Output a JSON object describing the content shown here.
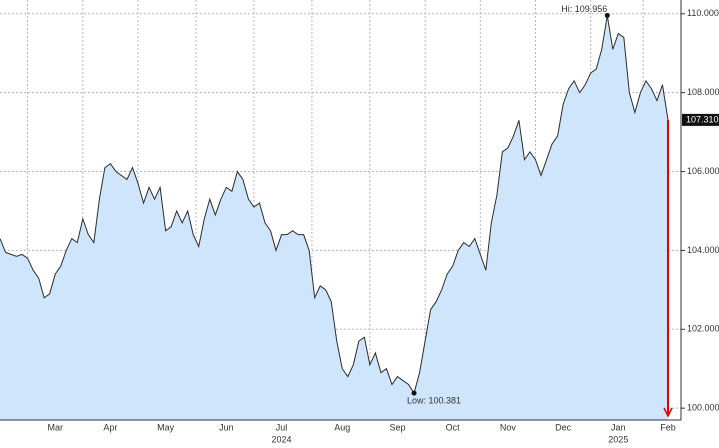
{
  "chart_data": {
    "type": "area",
    "color": "#cfe5fc",
    "line_color": "#2b2b2b",
    "categories": [
      null,
      null,
      null,
      null,
      null,
      null,
      null,
      null,
      null,
      null,
      "Mar",
      null,
      null,
      null,
      null,
      null,
      null,
      null,
      null,
      null,
      "Apr",
      null,
      null,
      null,
      null,
      null,
      null,
      null,
      null,
      null,
      "May",
      null,
      null,
      null,
      null,
      null,
      null,
      null,
      null,
      null,
      null,
      "Jun",
      null,
      null,
      null,
      null,
      null,
      null,
      null,
      null,
      null,
      "Jul",
      null,
      null,
      null,
      null,
      null,
      null,
      null,
      null,
      null,
      null,
      "Aug",
      null,
      null,
      null,
      null,
      null,
      null,
      null,
      null,
      null,
      "Sep",
      null,
      null,
      null,
      null,
      null,
      null,
      null,
      null,
      null,
      "Oct",
      null,
      null,
      null,
      null,
      null,
      null,
      null,
      null,
      null,
      "Nov",
      null,
      null,
      null,
      null,
      null,
      null,
      null,
      null,
      null,
      "Dec",
      null,
      null,
      null,
      null,
      null,
      null,
      null,
      null,
      null,
      "Jan",
      null,
      null,
      null,
      null,
      null,
      null,
      null,
      null,
      "Feb"
    ],
    "values": [
      104.3,
      103.95,
      103.9,
      103.85,
      103.9,
      103.8,
      103.5,
      103.3,
      102.8,
      102.9,
      103.4,
      103.6,
      104.0,
      104.3,
      104.2,
      104.8,
      104.4,
      104.2,
      105.3,
      106.1,
      106.2,
      106.0,
      105.9,
      105.8,
      106.1,
      105.7,
      105.2,
      105.6,
      105.3,
      105.6,
      104.5,
      104.6,
      105.0,
      104.7,
      105.0,
      104.4,
      104.1,
      104.8,
      105.3,
      104.9,
      105.3,
      105.6,
      105.5,
      106.0,
      105.8,
      105.3,
      105.1,
      105.2,
      104.7,
      104.5,
      104.0,
      104.4,
      104.4,
      104.5,
      104.4,
      104.4,
      104.0,
      102.8,
      103.1,
      103.0,
      102.7,
      101.7,
      101.0,
      100.8,
      101.1,
      101.7,
      101.8,
      101.1,
      101.4,
      100.9,
      101.0,
      100.6,
      100.8,
      100.7,
      100.6,
      100.381,
      100.9,
      101.7,
      102.5,
      102.7,
      103.0,
      103.4,
      103.6,
      104.0,
      104.2,
      104.1,
      104.3,
      103.9,
      103.5,
      104.7,
      105.4,
      106.5,
      106.6,
      106.9,
      107.3,
      106.3,
      106.5,
      106.3,
      105.9,
      106.3,
      106.7,
      106.9,
      107.7,
      108.1,
      108.3,
      108.0,
      108.2,
      108.5,
      108.6,
      109.1,
      109.956,
      109.1,
      109.5,
      109.4,
      108.0,
      107.5,
      108.0,
      108.3,
      108.1,
      107.8,
      108.2,
      107.31
    ],
    "ylim": [
      99.7,
      110.35
    ],
    "yticks": [
      {
        "value": 100,
        "label": "100.000"
      },
      {
        "value": 102,
        "label": "102.000"
      },
      {
        "value": 104,
        "label": "104.000"
      },
      {
        "value": 106,
        "label": "106.000"
      },
      {
        "value": 108,
        "label": "108.000"
      },
      {
        "value": 110,
        "label": "110.000"
      }
    ],
    "grid": true,
    "year_labels": [
      "2024",
      "2025"
    ],
    "annotations": [
      "Hi: 109.956",
      "Low: 100.381",
      "107.310"
    ]
  }
}
